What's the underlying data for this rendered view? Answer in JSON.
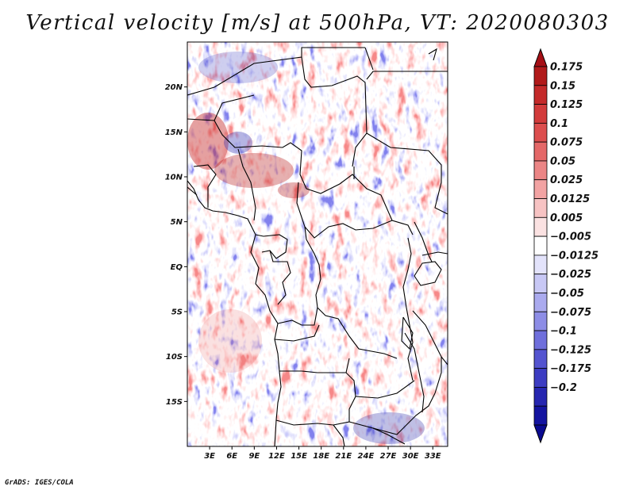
{
  "title": "Vertical velocity [m/s] at 500hPa, VT: 2020080303",
  "credit": "GrADS: IGES/COLA",
  "chart_data": {
    "type": "heatmap",
    "title": "Vertical velocity [m/s] at 500hPa, VT: 2020080303",
    "variable": "Vertical velocity",
    "units": "m/s",
    "level": "500hPa",
    "valid_time": "2020080303",
    "lon_range": [
      0,
      35
    ],
    "lat_range": [
      -20,
      25
    ],
    "lat_ticks": [
      {
        "value": 20,
        "label": "20N"
      },
      {
        "value": 15,
        "label": "15N"
      },
      {
        "value": 10,
        "label": "10N"
      },
      {
        "value": 5,
        "label": "5N"
      },
      {
        "value": 0,
        "label": "EQ"
      },
      {
        "value": -5,
        "label": "5S"
      },
      {
        "value": -10,
        "label": "10S"
      },
      {
        "value": -15,
        "label": "15S"
      }
    ],
    "lon_ticks": [
      {
        "value": 3,
        "label": "3E"
      },
      {
        "value": 6,
        "label": "6E"
      },
      {
        "value": 9,
        "label": "9E"
      },
      {
        "value": 12,
        "label": "12E"
      },
      {
        "value": 15,
        "label": "15E"
      },
      {
        "value": 18,
        "label": "18E"
      },
      {
        "value": 21,
        "label": "21E"
      },
      {
        "value": 24,
        "label": "24E"
      },
      {
        "value": 27,
        "label": "27E"
      },
      {
        "value": 30,
        "label": "30E"
      },
      {
        "value": 33,
        "label": "33E"
      }
    ],
    "colorbar": {
      "labels": [
        "0.175",
        "0.15",
        "0.125",
        "0.1",
        "0.075",
        "0.05",
        "0.025",
        "0.0125",
        "0.005",
        "−0.005",
        "−0.0125",
        "−0.025",
        "−0.05",
        "−0.075",
        "−0.1",
        "−0.125",
        "−0.175",
        "−0.2"
      ],
      "colors": [
        "#b11a1a",
        "#c42a2a",
        "#d23b3b",
        "#dc4e4e",
        "#e46868",
        "#eb8585",
        "#f2a3a3",
        "#f7c3c3",
        "#fbe2e2",
        "#ffffff",
        "#e3e3fb",
        "#c8c8f5",
        "#aaaaee",
        "#8d8de6",
        "#6f6fdc",
        "#5454d0",
        "#3c3cc2",
        "#2626b0",
        "#1414a0"
      ],
      "top_arrow_color": "#a50f15",
      "bottom_arrow_color": "#0a0a90"
    }
  }
}
